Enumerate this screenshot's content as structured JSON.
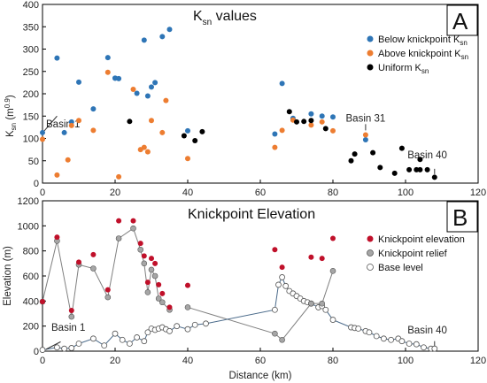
{
  "chart_data": [
    {
      "type": "scatter",
      "panel_letter": "A",
      "title_main": "K",
      "title_sub": "sn",
      "title_rest": " values",
      "ylabel_main": "K",
      "ylabel_sub": "sn",
      "ylabel_rest": " (m",
      "ylabel_sup": "0.9",
      "ylabel_end": ")",
      "xlim": [
        0,
        120
      ],
      "ylim": [
        0,
        400
      ],
      "yticks": [
        "0",
        "50",
        "100",
        "150",
        "200",
        "250",
        "300",
        "350",
        "400"
      ],
      "xticks": [
        "0",
        "20",
        "40",
        "60",
        "80",
        "100",
        "120"
      ],
      "legend_position": "top-right",
      "colors": {
        "below": "#2e75b6",
        "above": "#ed7d31",
        "uniform": "#000000"
      },
      "legend": [
        {
          "key": "below",
          "main": "Below knickpoint K",
          "sub": "sn"
        },
        {
          "key": "above",
          "main": "Above knickpoint K",
          "sub": "sn"
        },
        {
          "key": "uniform",
          "main": "Uniform K",
          "sub": "sn"
        }
      ],
      "annotations": [
        {
          "text": "Basin 1",
          "x": 0,
          "y": 110
        },
        {
          "text": "Basin 31",
          "x": 89,
          "y": 100
        },
        {
          "text": "Basin 40",
          "x": 108,
          "y": 12
        }
      ],
      "series": [
        {
          "name": "Below knickpoint Ksn",
          "key": "below",
          "points": [
            [
              0,
              113
            ],
            [
              4,
              280
            ],
            [
              6,
              113
            ],
            [
              8,
              137
            ],
            [
              10,
              226
            ],
            [
              14,
              166
            ],
            [
              18,
              281
            ],
            [
              20,
              235
            ],
            [
              20,
              235
            ],
            [
              21,
              234
            ],
            [
              26,
              201
            ],
            [
              28,
              320
            ],
            [
              29,
              195
            ],
            [
              30,
              215
            ],
            [
              31,
              225
            ],
            [
              33,
              328
            ],
            [
              35,
              344
            ],
            [
              40,
              117
            ],
            [
              64,
              110
            ],
            [
              66,
              223
            ],
            [
              69,
              145
            ],
            [
              74,
              155
            ],
            [
              77,
              150
            ],
            [
              80,
              148
            ],
            [
              89,
              97
            ]
          ]
        },
        {
          "name": "Above knickpoint Ksn",
          "key": "above",
          "points": [
            [
              0,
              98
            ],
            [
              4,
              18
            ],
            [
              7,
              52
            ],
            [
              8,
              129
            ],
            [
              10,
              140
            ],
            [
              14,
              118
            ],
            [
              18,
              248
            ],
            [
              21,
              14
            ],
            [
              25,
              210
            ],
            [
              27,
              75
            ],
            [
              28,
              80
            ],
            [
              29,
              70
            ],
            [
              30,
              140
            ],
            [
              33,
              113
            ],
            [
              34,
              185
            ],
            [
              40,
              55
            ],
            [
              64,
              80
            ],
            [
              66,
              118
            ],
            [
              69,
              141
            ],
            [
              74,
              130
            ],
            [
              77,
              137
            ],
            [
              80,
              117
            ],
            [
              89,
              108
            ]
          ]
        },
        {
          "name": "Uniform Ksn",
          "key": "uniform",
          "points": [
            [
              24,
              138
            ],
            [
              39,
              106
            ],
            [
              42,
              95
            ],
            [
              44,
              115
            ],
            [
              68,
              160
            ],
            [
              70,
              137
            ],
            [
              72,
              138
            ],
            [
              74,
              140
            ],
            [
              78,
              122
            ],
            [
              85,
              50
            ],
            [
              86,
              65
            ],
            [
              91,
              68
            ],
            [
              93,
              35
            ],
            [
              97,
              22
            ],
            [
              99,
              78
            ],
            [
              101,
              30
            ],
            [
              103,
              30
            ],
            [
              104,
              53
            ],
            [
              104,
              30
            ],
            [
              106,
              30
            ],
            [
              108,
              13
            ]
          ]
        }
      ]
    },
    {
      "type": "scatter",
      "panel_letter": "B",
      "title": "Knickpoint Elevation",
      "ylabel": "Elevation (m)",
      "xlabel": "Distance (km)",
      "xlim": [
        0,
        120
      ],
      "ylim": [
        0,
        1200
      ],
      "yticks": [
        "0",
        "200",
        "400",
        "600",
        "800",
        "1000",
        "1200"
      ],
      "xticks": [
        "0",
        "20",
        "40",
        "60",
        "80",
        "100",
        "120"
      ],
      "legend_position": "top-right",
      "colors": {
        "elevation": "#c0102a",
        "relief": "#a6a6a6",
        "base": "#ffffff",
        "line": "#4a6a8a"
      },
      "legend": [
        {
          "key": "elevation",
          "label": "Knickpoint elevation"
        },
        {
          "key": "relief",
          "label": "Knickpoint relief"
        },
        {
          "key": "base",
          "label": "Base level"
        }
      ],
      "annotations": [
        {
          "text": "Basin 1",
          "x": 0,
          "y": 30
        },
        {
          "text": "Basin 40",
          "x": 108,
          "y": 30
        }
      ],
      "series": [
        {
          "name": "Knickpoint elevation",
          "key": "elevation",
          "points": [
            [
              0,
              395
            ],
            [
              4,
              910
            ],
            [
              8,
              325
            ],
            [
              10,
              710
            ],
            [
              14,
              770
            ],
            [
              18,
              490
            ],
            [
              21,
              1040
            ],
            [
              25,
              1040
            ],
            [
              27,
              860
            ],
            [
              28,
              760
            ],
            [
              29,
              550
            ],
            [
              30,
              740
            ],
            [
              31,
              700
            ],
            [
              32,
              530
            ],
            [
              33,
              460
            ],
            [
              35,
              350
            ],
            [
              40,
              525
            ],
            [
              64,
              810
            ],
            [
              66,
              670
            ],
            [
              74,
              750
            ],
            [
              77,
              740
            ],
            [
              80,
              900
            ]
          ]
        },
        {
          "name": "Knickpoint relief",
          "key": "relief",
          "points": [
            [
              0,
              395
            ],
            [
              4,
              880
            ],
            [
              8,
              275
            ],
            [
              10,
              690
            ],
            [
              14,
              660
            ],
            [
              18,
              430
            ],
            [
              21,
              900
            ],
            [
              25,
              980
            ],
            [
              27,
              810
            ],
            [
              28,
              700
            ],
            [
              29,
              470
            ],
            [
              30,
              650
            ],
            [
              31,
              600
            ],
            [
              32,
              420
            ],
            [
              33,
              390
            ],
            [
              35,
              330
            ],
            [
              40,
              350
            ],
            [
              64,
              140
            ],
            [
              66,
              90
            ],
            [
              74,
              380
            ],
            [
              77,
              380
            ],
            [
              80,
              640
            ]
          ]
        },
        {
          "name": "Base level",
          "key": "base",
          "points": [
            [
              0,
              10
            ],
            [
              4,
              30
            ],
            [
              6,
              20
            ],
            [
              8,
              25
            ],
            [
              10,
              60
            ],
            [
              14,
              100
            ],
            [
              17,
              45
            ],
            [
              20,
              140
            ],
            [
              22,
              90
            ],
            [
              24,
              60
            ],
            [
              26,
              110
            ],
            [
              28,
              80
            ],
            [
              29,
              150
            ],
            [
              30,
              180
            ],
            [
              31,
              170
            ],
            [
              32,
              180
            ],
            [
              33,
              190
            ],
            [
              34,
              175
            ],
            [
              35,
              160
            ],
            [
              37,
              200
            ],
            [
              40,
              175
            ],
            [
              42,
              210
            ],
            [
              45,
              220
            ],
            [
              64,
              330
            ],
            [
              65,
              530
            ],
            [
              66,
              590
            ],
            [
              67,
              520
            ],
            [
              68,
              480
            ],
            [
              69,
              460
            ],
            [
              70,
              440
            ],
            [
              71,
              420
            ],
            [
              72,
              400
            ],
            [
              73,
              390
            ],
            [
              74,
              380
            ],
            [
              76,
              350
            ],
            [
              77,
              360
            ],
            [
              78,
              330
            ],
            [
              80,
              250
            ],
            [
              85,
              190
            ],
            [
              86,
              185
            ],
            [
              87,
              180
            ],
            [
              89,
              160
            ],
            [
              90,
              150
            ],
            [
              92,
              120
            ],
            [
              94,
              100
            ],
            [
              96,
              90
            ],
            [
              98,
              100
            ],
            [
              99,
              80
            ],
            [
              101,
              60
            ],
            [
              103,
              55
            ],
            [
              105,
              30
            ],
            [
              107,
              20
            ],
            [
              108,
              20
            ]
          ]
        }
      ],
      "connector_pairs": [
        [
          0,
          0
        ],
        [
          1,
          1
        ],
        [
          2,
          2
        ],
        [
          3,
          3
        ],
        [
          4,
          4
        ],
        [
          5,
          5
        ],
        [
          6,
          6
        ],
        [
          7,
          7
        ],
        [
          8,
          8
        ],
        [
          9,
          9
        ],
        [
          10,
          10
        ],
        [
          11,
          11
        ],
        [
          12,
          12
        ],
        [
          13,
          13
        ],
        [
          14,
          14
        ],
        [
          15,
          15
        ],
        [
          16,
          16
        ],
        [
          17,
          17
        ],
        [
          18,
          18
        ],
        [
          19,
          19
        ],
        [
          20,
          20
        ],
        [
          21,
          21
        ]
      ]
    }
  ]
}
